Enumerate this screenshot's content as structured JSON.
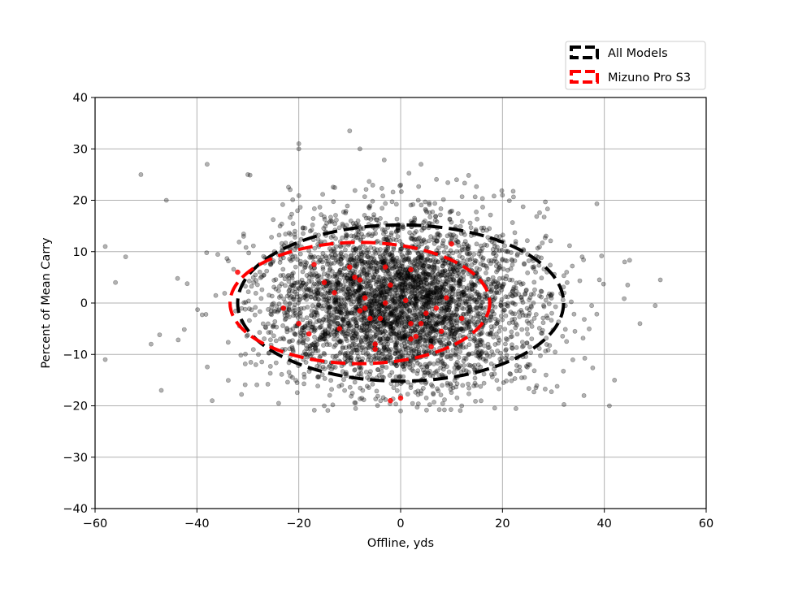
{
  "chart_data": {
    "type": "scatter",
    "title": "",
    "xlabel": "Offline, yds",
    "ylabel": "Percent of Mean Carry",
    "xlim": [
      -60,
      60
    ],
    "ylim": [
      -40,
      40
    ],
    "xticks": [
      -60,
      -40,
      -20,
      0,
      20,
      40,
      60
    ],
    "yticks": [
      -40,
      -30,
      -20,
      -10,
      0,
      10,
      20,
      30,
      40
    ],
    "xtick_labels": [
      "−60",
      "−40",
      "−20",
      "0",
      "20",
      "40",
      "60"
    ],
    "ytick_labels": [
      "−40",
      "−30",
      "−20",
      "−10",
      "0",
      "10",
      "20",
      "30",
      "40"
    ],
    "grid": true,
    "legend_position": "upper-right-above-plot",
    "series": [
      {
        "name": "All Models",
        "kind": "scatter",
        "color": "#000000",
        "alpha": 0.3,
        "count_approx": 4000,
        "center": [
          0,
          0
        ],
        "x_sd": 13,
        "y_sd": 8.5,
        "x_range": [
          -60,
          52
        ],
        "y_range": [
          -21,
          34
        ],
        "representative_points": [
          [
            -51,
            25
          ],
          [
            -58,
            11
          ],
          [
            -58,
            -11
          ],
          [
            -49,
            -8
          ],
          [
            -47,
            -17
          ],
          [
            -37,
            -19
          ],
          [
            -38,
            27
          ],
          [
            -30,
            25
          ],
          [
            -10,
            33.5
          ],
          [
            -8,
            30
          ],
          [
            -20,
            31
          ],
          [
            -20,
            30
          ],
          [
            4,
            27
          ],
          [
            11,
            24
          ],
          [
            20,
            21
          ],
          [
            -15,
            -20
          ],
          [
            0,
            -21
          ],
          [
            12,
            -20
          ],
          [
            36,
            -18
          ],
          [
            41,
            -20
          ],
          [
            44,
            8
          ],
          [
            51,
            4.5
          ],
          [
            47,
            -4
          ],
          [
            50,
            -0.5
          ],
          [
            42,
            -15
          ],
          [
            -46,
            20
          ],
          [
            -54,
            9
          ],
          [
            -56,
            4
          ]
        ]
      },
      {
        "name": "Mizuno Pro S3",
        "kind": "scatter",
        "color": "#ff0000",
        "points": [
          [
            -32,
            6
          ],
          [
            -17,
            7.5
          ],
          [
            -15,
            4
          ],
          [
            -13,
            2
          ],
          [
            -12,
            -5
          ],
          [
            -10,
            7
          ],
          [
            -9,
            5
          ],
          [
            -8,
            4.5
          ],
          [
            -7,
            1
          ],
          [
            -7,
            -1
          ],
          [
            -8,
            -1.5
          ],
          [
            -6,
            -3
          ],
          [
            -5,
            -8
          ],
          [
            -5,
            -9
          ],
          [
            -3,
            7
          ],
          [
            -2,
            3.5
          ],
          [
            -3,
            0
          ],
          [
            -4,
            -3
          ],
          [
            1,
            0.5
          ],
          [
            2,
            6.5
          ],
          [
            2,
            -4
          ],
          [
            2,
            -7
          ],
          [
            3,
            -6.5
          ],
          [
            4,
            -4
          ],
          [
            5,
            -2
          ],
          [
            6,
            -8.5
          ],
          [
            7,
            -1
          ],
          [
            8,
            -5.5
          ],
          [
            9,
            1
          ],
          [
            10,
            11.5
          ],
          [
            12,
            -3
          ],
          [
            -2,
            -19
          ],
          [
            0,
            -18.5
          ],
          [
            -23,
            -1
          ],
          [
            -20,
            -4
          ],
          [
            -18,
            -6
          ]
        ]
      },
      {
        "name": "All Models",
        "kind": "ellipse",
        "color": "#000000",
        "style": "dashed",
        "center": [
          0,
          0
        ],
        "semi_axis_x": 32,
        "semi_axis_y": 15.2
      },
      {
        "name": "Mizuno Pro S3",
        "kind": "ellipse",
        "color": "#ff0000",
        "style": "dashed",
        "center": [
          -8,
          0
        ],
        "semi_axis_x": 25.5,
        "semi_axis_y": 11.8
      }
    ],
    "legend": [
      {
        "label": "All Models",
        "color": "#000000"
      },
      {
        "label": "Mizuno Pro S3",
        "color": "#ff0000"
      }
    ]
  }
}
